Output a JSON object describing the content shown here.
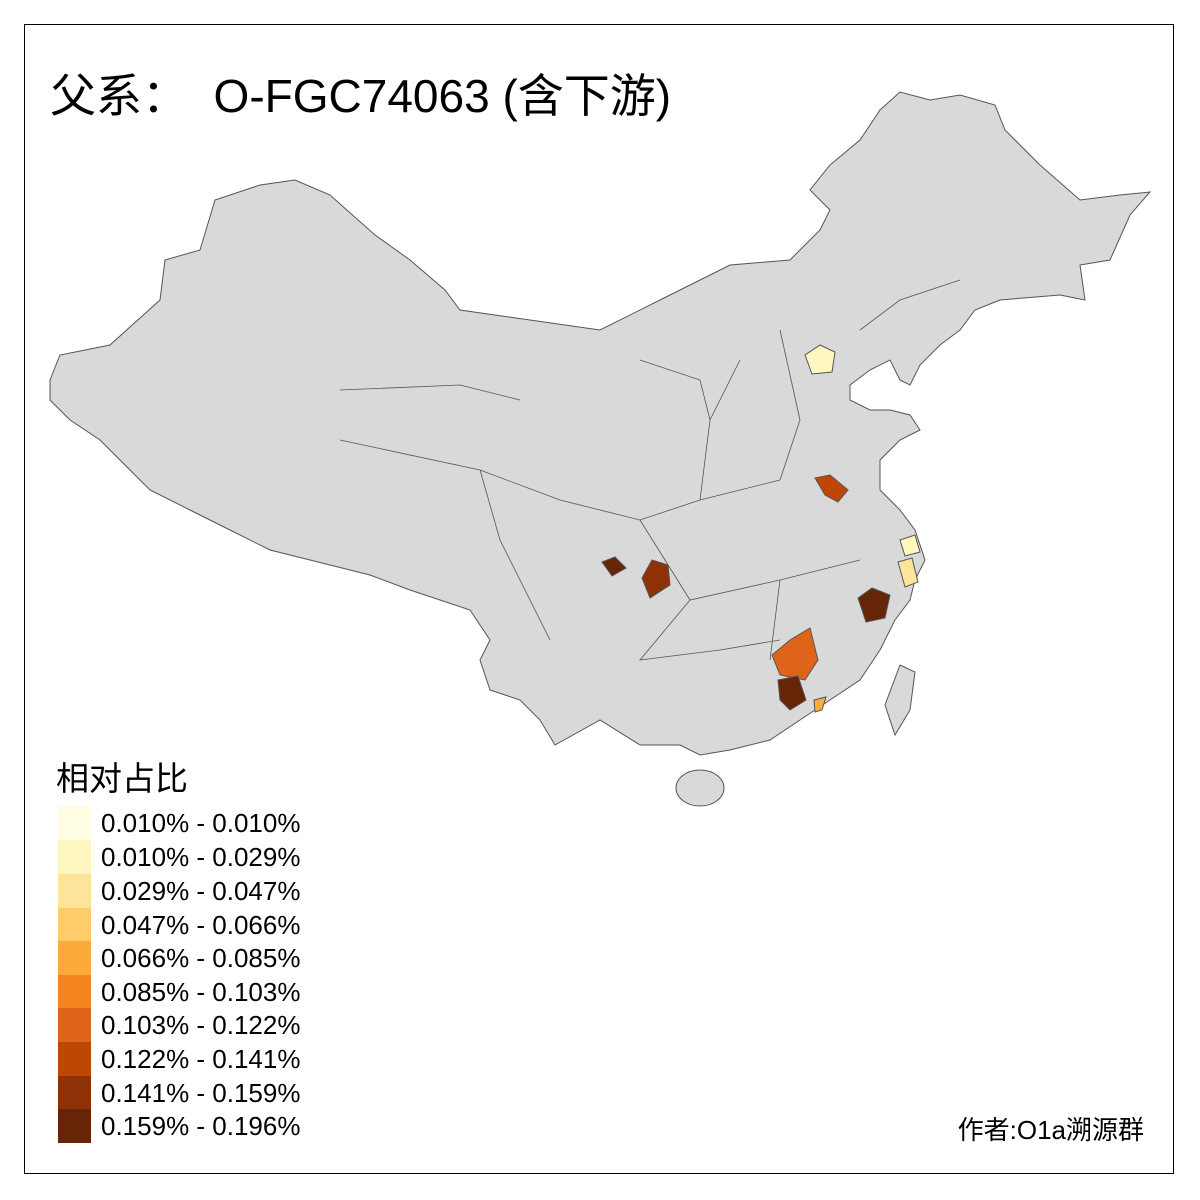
{
  "title": "父系：  O-FGC74063 (含下游)",
  "legend": {
    "title": "相对占比",
    "items": [
      {
        "label": "0.010% - 0.010%",
        "color": "#fffde4"
      },
      {
        "label": "0.010% - 0.029%",
        "color": "#fff6c0"
      },
      {
        "label": "0.029% - 0.047%",
        "color": "#fee39a"
      },
      {
        "label": "0.047% - 0.066%",
        "color": "#fecd6a"
      },
      {
        "label": "0.066% - 0.085%",
        "color": "#fdaa3c"
      },
      {
        "label": "0.085% - 0.103%",
        "color": "#f4841f"
      },
      {
        "label": "0.103% - 0.122%",
        "color": "#e0631a"
      },
      {
        "label": "0.122% - 0.141%",
        "color": "#bf4704"
      },
      {
        "label": "0.141% - 0.159%",
        "color": "#8e3106"
      },
      {
        "label": "0.159% - 0.196%",
        "color": "#662506"
      }
    ]
  },
  "credit": "作者:O1a溯源群",
  "colors": {
    "base_region": "#d9d9d9",
    "border": "#555555"
  }
}
